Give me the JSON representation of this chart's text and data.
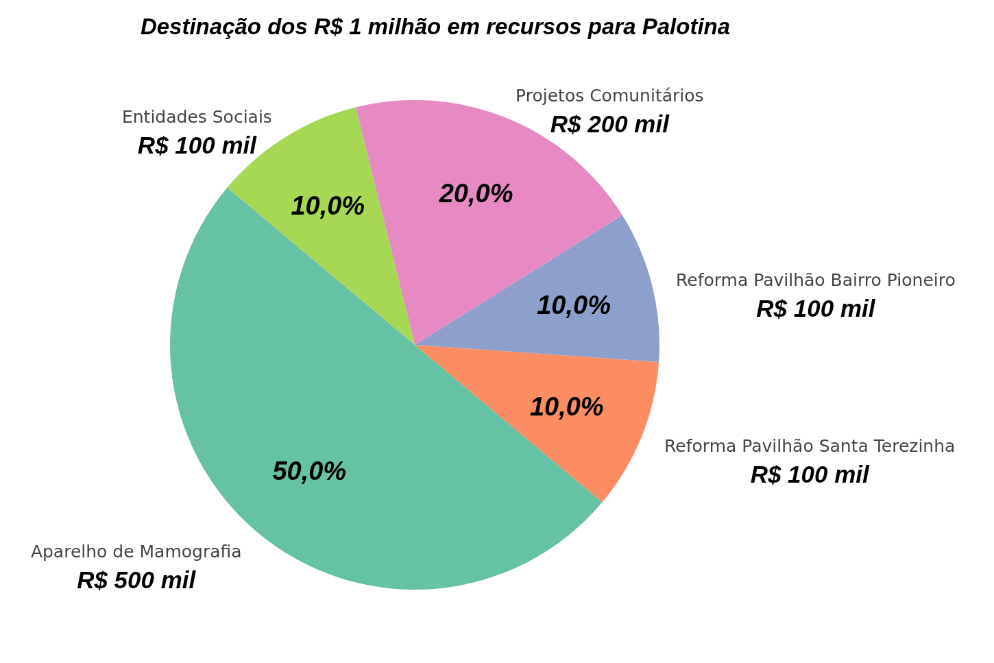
{
  "chart_data": {
    "type": "pie",
    "title": "Destinação dos R$ 1 milhão em recursos para Palotina",
    "categories": [
      "Aparelho de Mamografia",
      "Reforma Pavilhão Santa Terezinha",
      "Reforma Pavilhão Bairro Pioneiro",
      "Projetos Comunitários",
      "Entidades Sociais"
    ],
    "values": [
      50,
      10,
      10,
      20,
      10
    ],
    "colors": [
      "#66c2a5",
      "#fc8d62",
      "#8da0cb",
      "#e78ac3",
      "#a6d854"
    ],
    "value_labels": [
      "50,0%",
      "10,0%",
      "10,0%",
      "20,0%",
      "10,0%"
    ],
    "annotations": [
      {
        "text": "R$ 500 mil",
        "x": "Aparelho de Mamografia"
      },
      {
        "text": "R$ 100 mil",
        "x": "Reforma Pavilhão Santa Terezinha"
      },
      {
        "text": "R$ 100 mil",
        "x": "Reforma Pavilhão Bairro Pioneiro"
      },
      {
        "text": "R$ 200 mil",
        "x": "Projetos Comunitários"
      },
      {
        "text": "R$ 100 mil",
        "x": "Entidades Sociais"
      }
    ]
  }
}
